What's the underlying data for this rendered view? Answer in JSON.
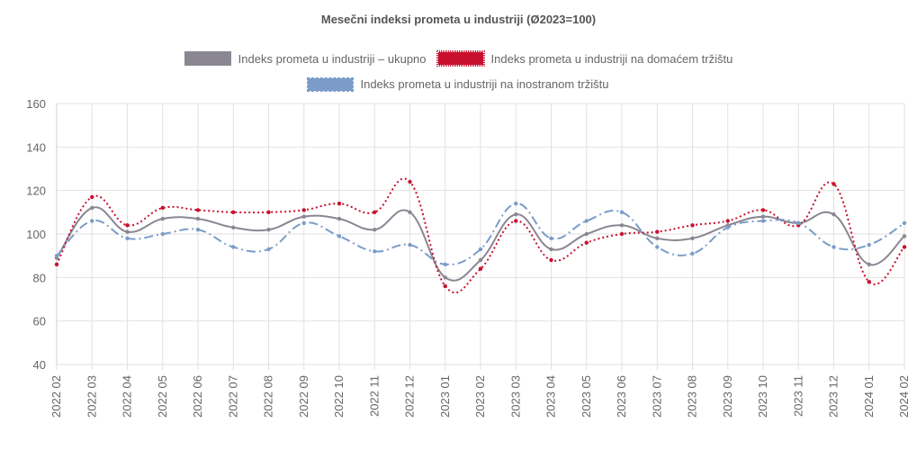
{
  "chart_data": {
    "type": "line",
    "title": "Mesečni indeksi prometa u industriji (Ø2023=100)",
    "categories": [
      "2022 02",
      "2022 03",
      "2022 04",
      "2022 05",
      "2022 06",
      "2022 07",
      "2022 08",
      "2022 09",
      "2022 10",
      "2022 11",
      "2022 12",
      "2023 01",
      "2023 02",
      "2023 03",
      "2023 04",
      "2023 05",
      "2023 06",
      "2023 07",
      "2023 08",
      "2023 09",
      "2023 10",
      "2023 11",
      "2023 12",
      "2024 01",
      "2024 02"
    ],
    "y_ticks": [
      "160",
      "140",
      "120",
      "100",
      "80",
      "60",
      "40"
    ],
    "ylim": [
      40,
      160
    ],
    "grid": true,
    "legend_position": "top-center",
    "series": [
      {
        "name": "Indeks prometa u industriji – ukupno",
        "color": "#8a8692",
        "style": "solid",
        "values": [
          89,
          112,
          101,
          107,
          107,
          103,
          102,
          108,
          107,
          102,
          110,
          80,
          88,
          109,
          93,
          100,
          104,
          98,
          98,
          104,
          108,
          105,
          109,
          86,
          99
        ]
      },
      {
        "name": "Indeks prometa u industriji na domaćem tržištu",
        "color": "#c8102e",
        "style": "dotted",
        "values": [
          86,
          117,
          104,
          112,
          111,
          110,
          110,
          111,
          114,
          110,
          124,
          76,
          84,
          106,
          88,
          96,
          100,
          101,
          104,
          106,
          111,
          104,
          123,
          78,
          94
        ]
      },
      {
        "name": "Indeks prometa u industriji na inostranom tržištu",
        "color": "#7b9cc8",
        "style": "dashdot",
        "values": [
          90,
          106,
          98,
          100,
          102,
          94,
          93,
          105,
          99,
          92,
          95,
          86,
          93,
          114,
          98,
          106,
          110,
          94,
          91,
          103,
          106,
          105,
          94,
          95,
          105
        ]
      }
    ]
  }
}
